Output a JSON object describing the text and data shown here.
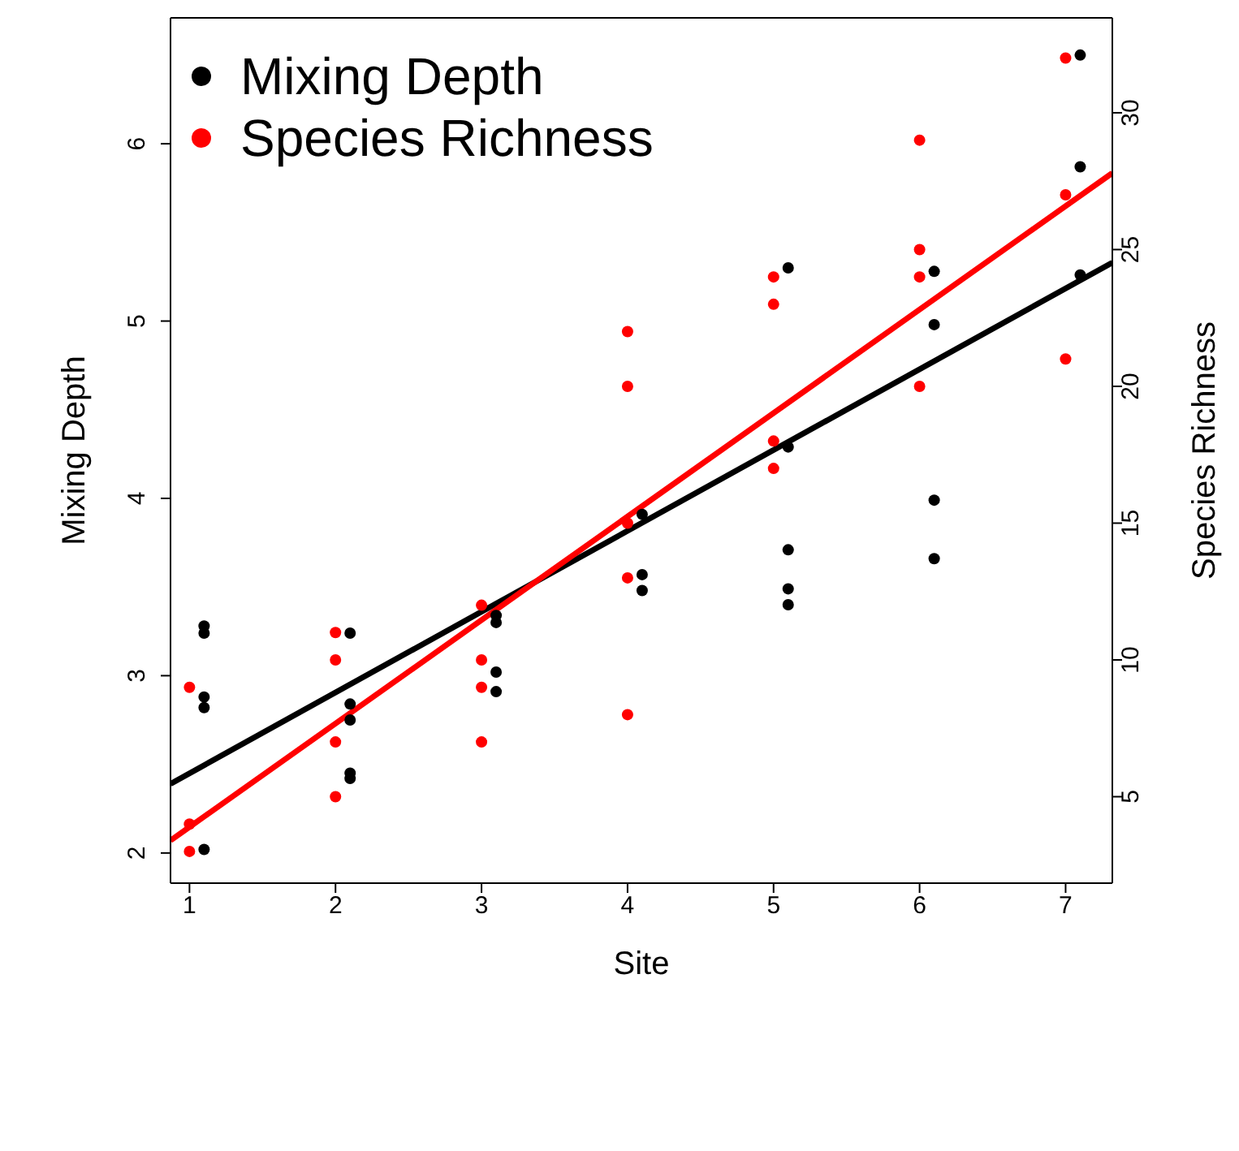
{
  "chart_data": {
    "type": "scatter",
    "xlabel": "Site",
    "ylabel": "Mixing Depth",
    "y2label": "Species Richness",
    "xlim": [
      0.87,
      7.32
    ],
    "xticks": [
      1,
      2,
      3,
      4,
      5,
      6,
      7
    ],
    "ylim": [
      1.83,
      6.71
    ],
    "yticks": [
      2,
      3,
      4,
      5,
      6
    ],
    "y2lim": [
      1.84,
      33.47
    ],
    "y2ticks": [
      5,
      10,
      15,
      20,
      25,
      30
    ],
    "marker": "circle",
    "legend": "top left",
    "series": [
      {
        "name": "Mixing Depth",
        "color": "#000000",
        "x": [
          1.1,
          1.1,
          1.1,
          1.1,
          1.1,
          2.1,
          2.1,
          2.1,
          2.1,
          2.1,
          3.1,
          3.1,
          3.1,
          3.1,
          4.1,
          4.1,
          4.1,
          5.1,
          5.1,
          5.1,
          5.1,
          5.1,
          6.1,
          6.1,
          6.1,
          6.1,
          7.1,
          7.1,
          7.1
        ],
        "values": [
          3.28,
          3.24,
          2.88,
          2.82,
          2.02,
          3.24,
          2.84,
          2.75,
          2.45,
          2.42,
          3.34,
          3.3,
          3.02,
          2.91,
          3.91,
          3.57,
          3.48,
          5.3,
          4.29,
          3.71,
          3.49,
          3.4,
          5.28,
          4.98,
          3.99,
          3.66,
          6.5,
          5.87,
          5.26
        ]
      },
      {
        "name": "Species Richness",
        "color": "#ff0000",
        "axis": "y2",
        "x": [
          1,
          1,
          1,
          2,
          2,
          2,
          2,
          3,
          3,
          3,
          3,
          4,
          4,
          4,
          4,
          4,
          5,
          5,
          5,
          5,
          6,
          6,
          6,
          6,
          7,
          7,
          7
        ],
        "values": [
          9,
          4,
          3,
          11,
          10,
          7,
          5,
          12,
          10,
          9,
          7,
          22,
          20,
          15,
          13,
          8,
          24,
          23,
          18,
          17,
          29,
          25,
          24,
          20,
          32,
          27,
          21
        ]
      },
      {
        "type": "line",
        "marker": "none",
        "color": "#000000",
        "x": [
          0.87,
          7.32
        ],
        "values": [
          2.39,
          5.33
        ]
      },
      {
        "type": "line",
        "marker": "none",
        "color": "#ff0000",
        "axis": "y2",
        "x": [
          0.87,
          7.32
        ],
        "values": [
          3.4,
          27.8
        ]
      }
    ]
  }
}
